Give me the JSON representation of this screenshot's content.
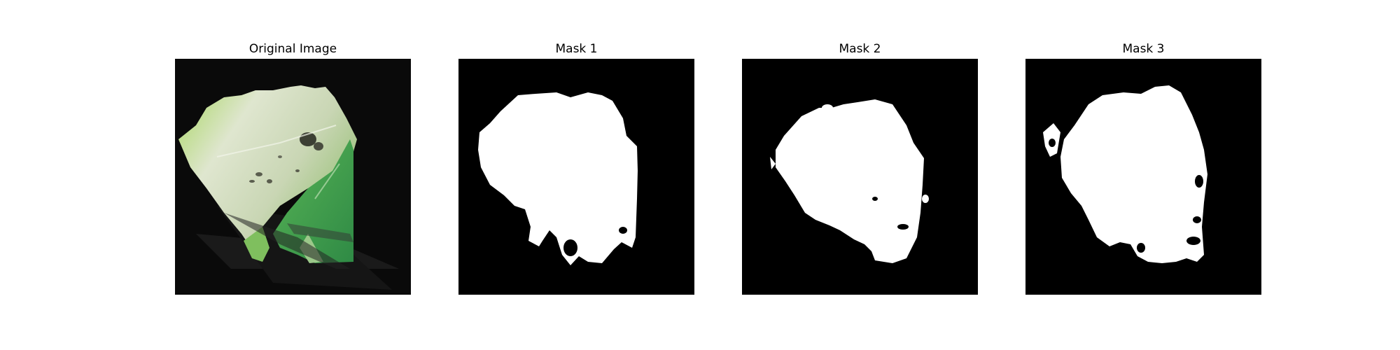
{
  "figure": {
    "panels": [
      {
        "title": "Original Image",
        "content": "leaf photograph"
      },
      {
        "title": "Mask 1",
        "content": "binary segmentation mask"
      },
      {
        "title": "Mask 2",
        "content": "binary segmentation mask"
      },
      {
        "title": "Mask 3",
        "content": "binary segmentation mask"
      }
    ]
  },
  "colors": {
    "background": "#ffffff",
    "mask_foreground": "#ffffff",
    "mask_background": "#000000",
    "leaf_light": "#dfe6cf",
    "leaf_green": "#8fcf5a",
    "leaf_dark_green": "#3f9a4a"
  }
}
